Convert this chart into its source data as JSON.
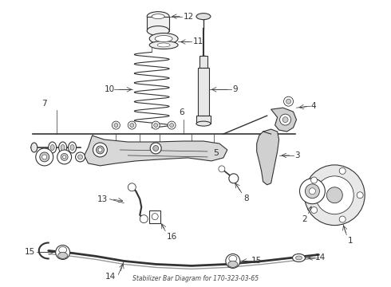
{
  "title": "Stabilizer Bar Diagram for 170-323-03-65",
  "background_color": "#ffffff",
  "line_color": "#333333",
  "figsize": [
    4.9,
    3.6
  ],
  "dpi": 100,
  "annotation_fontsize": 7.5,
  "label_fontsize": 6.5
}
